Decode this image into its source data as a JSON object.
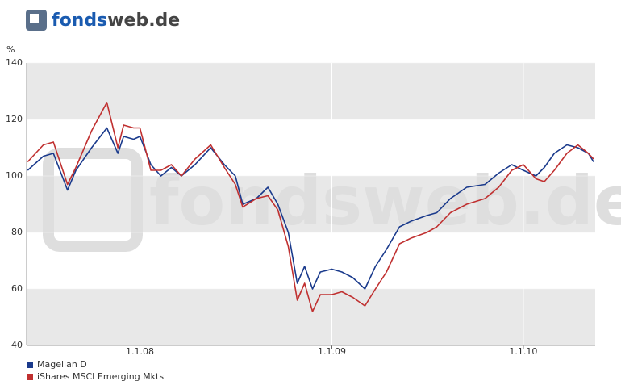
{
  "logo": {
    "part1": "fonds",
    "part2": "web.de"
  },
  "watermark": "fondsweb.de",
  "chart_data": {
    "type": "line",
    "y_label": "%",
    "x": [
      "2007-06-01",
      "2007-07-01",
      "2007-07-20",
      "2007-08-16",
      "2007-09-01",
      "2007-10-01",
      "2007-10-30",
      "2007-11-20",
      "2007-12-01",
      "2007-12-20",
      "2008-01-01",
      "2008-01-22",
      "2008-02-10",
      "2008-03-01",
      "2008-03-20",
      "2008-04-15",
      "2008-05-15",
      "2008-06-10",
      "2008-07-01",
      "2008-07-15",
      "2008-08-10",
      "2008-09-01",
      "2008-09-20",
      "2008-10-10",
      "2008-10-27",
      "2008-11-10",
      "2008-11-25",
      "2008-12-10",
      "2009-01-01",
      "2009-01-20",
      "2009-02-10",
      "2009-03-05",
      "2009-03-25",
      "2009-04-15",
      "2009-05-10",
      "2009-06-01",
      "2009-07-01",
      "2009-07-20",
      "2009-08-15",
      "2009-09-15",
      "2009-10-20",
      "2009-11-15",
      "2009-12-10",
      "2010-01-01",
      "2010-01-25",
      "2010-02-10",
      "2010-03-01",
      "2010-03-25",
      "2010-04-15",
      "2010-05-05",
      "2010-05-15"
    ],
    "series": [
      {
        "name": "Magellan D",
        "color": "#1a3a8c",
        "values": [
          102,
          107,
          108,
          95,
          102,
          110,
          117,
          108,
          114,
          113,
          114,
          104,
          100,
          103,
          100,
          104,
          110,
          104,
          100,
          90,
          92,
          96,
          90,
          80,
          62,
          68,
          60,
          66,
          67,
          66,
          64,
          60,
          68,
          74,
          82,
          84,
          86,
          87,
          92,
          96,
          97,
          101,
          104,
          102,
          100,
          103,
          108,
          111,
          110,
          108,
          105
        ]
      },
      {
        "name": "iShares MSCI Emerging Mkts",
        "color": "#c03030",
        "values": [
          105,
          111,
          112,
          97,
          103,
          116,
          126,
          110,
          118,
          117,
          117,
          102,
          102,
          104,
          100,
          106,
          111,
          103,
          97,
          89,
          92,
          93,
          88,
          75,
          56,
          62,
          52,
          58,
          58,
          59,
          57,
          54,
          60,
          66,
          76,
          78,
          80,
          82,
          87,
          90,
          92,
          96,
          102,
          104,
          99,
          98,
          102,
          108,
          111,
          108,
          106
        ]
      }
    ],
    "xlim": [
      "2007-05-30",
      "2010-05-18"
    ],
    "xticks": [
      {
        "value": "2008-01-01",
        "label": "1.1.08"
      },
      {
        "value": "2009-01-01",
        "label": "1.1.09"
      },
      {
        "value": "2010-01-01",
        "label": "1.1.10"
      }
    ],
    "ylim": [
      40,
      140
    ],
    "yticks": [
      40,
      60,
      80,
      100,
      120,
      140
    ],
    "grid": true,
    "legend": "bottom-left"
  }
}
